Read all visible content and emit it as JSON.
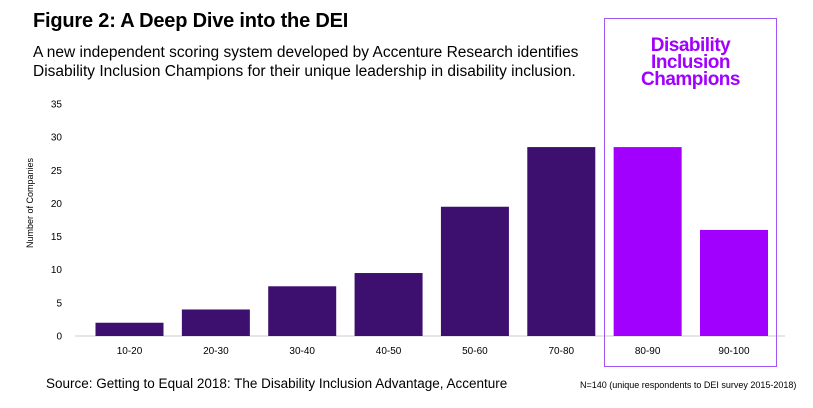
{
  "header": {
    "title": "Figure 2:  A Deep Dive into the DEI",
    "subtitle": "A new independent scoring system developed by Accenture Research identifies Disability Inclusion Champions for their unique leadership in disability inclusion."
  },
  "callout": {
    "lines": [
      "Disability",
      "Inclusion",
      "Champions"
    ]
  },
  "footer": {
    "source": "Source: Getting to Equal 2018: The Disability Inclusion Advantage, Accenture",
    "note": "N=140 (unique respondents to DEI survey 2015-2018)"
  },
  "colors": {
    "bar": "#3d0f6e",
    "highlight_bar": "#a100ff",
    "callout_border": "#a055f5",
    "axis": "#cccccc"
  },
  "chart_data": {
    "type": "bar",
    "title": "Figure 2:  A Deep Dive into the DEI",
    "xlabel": "",
    "ylabel": "Number of Companies",
    "categories": [
      "10-20",
      "20-30",
      "30-40",
      "40-50",
      "50-60",
      "70-80",
      "80-90",
      "90-100"
    ],
    "values": [
      2,
      4,
      7.5,
      9.5,
      19.5,
      28.5,
      28.5,
      16
    ],
    "highlighted": [
      "80-90",
      "90-100"
    ],
    "ylim": [
      0,
      35
    ],
    "yticks": [
      0,
      5,
      10,
      15,
      20,
      25,
      30,
      35
    ],
    "grid": false,
    "legend": "none"
  }
}
